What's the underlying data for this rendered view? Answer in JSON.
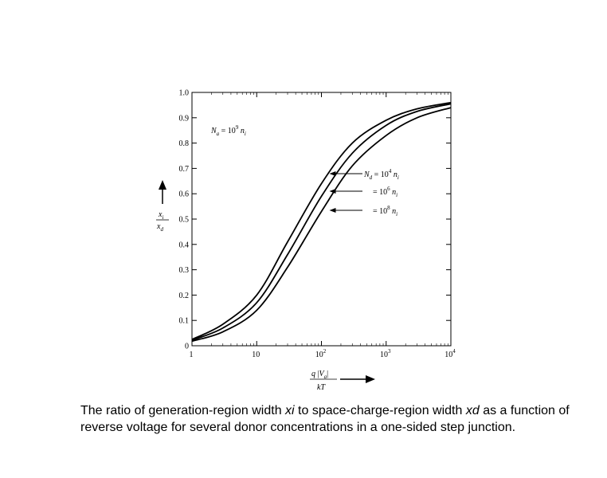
{
  "chart_data": {
    "type": "line",
    "x_scale": "log",
    "xlim": [
      1,
      10000
    ],
    "ylim": [
      0,
      1.0
    ],
    "x_ticks": [
      {
        "value": 1,
        "mantissa": "1",
        "exp": ""
      },
      {
        "value": 10,
        "mantissa": "10",
        "exp": ""
      },
      {
        "value": 100,
        "mantissa": "10",
        "exp": "2"
      },
      {
        "value": 1000,
        "mantissa": "10",
        "exp": "3"
      },
      {
        "value": 10000,
        "mantissa": "10",
        "exp": "4"
      }
    ],
    "y_ticks": [
      {
        "value": 0,
        "label": "0"
      },
      {
        "value": 0.1,
        "label": "0.1"
      },
      {
        "value": 0.2,
        "label": "0.2"
      },
      {
        "value": 0.3,
        "label": "0.3"
      },
      {
        "value": 0.4,
        "label": "0.4"
      },
      {
        "value": 0.5,
        "label": "0.5"
      },
      {
        "value": 0.6,
        "label": "0.6"
      },
      {
        "value": 0.7,
        "label": "0.7"
      },
      {
        "value": 0.8,
        "label": "0.8"
      },
      {
        "value": 0.9,
        "label": "0.9"
      },
      {
        "value": 1.0,
        "label": "1.0"
      }
    ],
    "xlabel": {
      "num_q": "q",
      "num_var": "V",
      "num_sub": "a",
      "den": "kT"
    },
    "ylabel": {
      "num": "x",
      "num_sub": "i",
      "den": "x",
      "den_sub": "d"
    },
    "annotation": {
      "n": "N",
      "n_sub": "a",
      "eq": " = 10",
      "exp": "9",
      "tail": " n",
      "tail_sub": "i"
    },
    "x": [
      1,
      3,
      10,
      30,
      100,
      300,
      1000,
      3000,
      10000
    ],
    "series": [
      {
        "label": {
          "prefix": "N",
          "prefix_sub": "d",
          "eq": " = 10",
          "exp": "4",
          "tail": " n",
          "tail_sub": "i"
        },
        "label_at_x": 100,
        "values": [
          0.025,
          0.085,
          0.2,
          0.41,
          0.64,
          0.8,
          0.89,
          0.935,
          0.96
        ]
      },
      {
        "label": {
          "prefix": "",
          "prefix_sub": "",
          "eq": "= 10",
          "exp": "6",
          "tail": " n",
          "tail_sub": "i"
        },
        "label_at_x": 100,
        "values": [
          0.022,
          0.07,
          0.17,
          0.36,
          0.59,
          0.76,
          0.87,
          0.925,
          0.955
        ]
      },
      {
        "label": {
          "prefix": "",
          "prefix_sub": "",
          "eq": "= 10",
          "exp": "8",
          "tail": " n",
          "tail_sub": "i"
        },
        "label_at_x": 100,
        "values": [
          0.018,
          0.055,
          0.14,
          0.31,
          0.53,
          0.71,
          0.83,
          0.9,
          0.94
        ]
      }
    ]
  },
  "caption": {
    "part1": "The ratio of generation-region width ",
    "xi": "xi",
    "part2": " to space-charge-region width ",
    "xd": "xd",
    "part3": " as a function of reverse voltage for several donor concentrations in a one-sided step junction."
  }
}
